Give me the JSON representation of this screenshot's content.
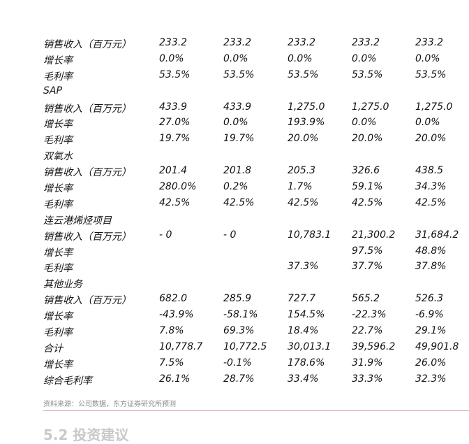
{
  "rows": [
    {
      "label": "销售收入（百万元）",
      "v": [
        "233.2",
        "233.2",
        "233.2",
        "233.2",
        "233.2"
      ]
    },
    {
      "label": "增长率",
      "v": [
        "0.0%",
        "0.0%",
        "0.0%",
        "0.0%",
        "0.0%"
      ]
    },
    {
      "label": "毛利率",
      "v": [
        "53.5%",
        "53.5%",
        "53.5%",
        "53.5%",
        "53.5%"
      ]
    },
    {
      "label": "SAP",
      "v": [
        "",
        "",
        "",
        "",
        ""
      ]
    },
    {
      "label": "销售收入（百万元）",
      "v": [
        "433.9",
        "433.9",
        "1,275.0",
        "1,275.0",
        "1,275.0"
      ]
    },
    {
      "label": "增长率",
      "v": [
        "27.0%",
        "0.0%",
        "193.9%",
        "0.0%",
        "0.0%"
      ]
    },
    {
      "label": "毛利率",
      "v": [
        "19.7%",
        "19.7%",
        "20.0%",
        "20.0%",
        "20.0%"
      ]
    },
    {
      "label": "双氧水",
      "v": [
        "",
        "",
        "",
        "",
        ""
      ]
    },
    {
      "label": "销售收入（百万元）",
      "v": [
        "201.4",
        "201.8",
        "205.3",
        "326.6",
        "438.5"
      ]
    },
    {
      "label": "增长率",
      "v": [
        "280.0%",
        "0.2%",
        "1.7%",
        "59.1%",
        "34.3%"
      ]
    },
    {
      "label": "毛利率",
      "v": [
        "42.5%",
        "42.5%",
        "42.5%",
        "42.5%",
        "42.5%"
      ]
    },
    {
      "label": "连云港烯烃项目",
      "v": [
        "",
        "",
        "",
        "",
        ""
      ]
    },
    {
      "label": "销售收入（百万元）",
      "v": [
        "- 0",
        "- 0",
        "10,783.1",
        "21,300.2",
        "31,684.2"
      ]
    },
    {
      "label": "增长率",
      "v": [
        "",
        "",
        "",
        "97.5%",
        "48.8%"
      ]
    },
    {
      "label": "毛利率",
      "v": [
        "",
        "",
        "37.3%",
        "37.7%",
        "37.8%"
      ]
    },
    {
      "label": "其他业务",
      "v": [
        "",
        "",
        "",
        "",
        ""
      ]
    },
    {
      "label": "销售收入（百万元）",
      "v": [
        "682.0",
        "285.9",
        "727.7",
        "565.2",
        "526.3"
      ]
    },
    {
      "label": "增长率",
      "v": [
        "-43.9%",
        "-58.1%",
        "154.5%",
        "-22.3%",
        "-6.9%"
      ]
    },
    {
      "label": "毛利率",
      "v": [
        "7.8%",
        "69.3%",
        "18.4%",
        "22.7%",
        "29.1%"
      ]
    },
    {
      "label": "合计",
      "v": [
        "10,778.7",
        "10,772.5",
        "30,013.1",
        "39,596.2",
        "49,901.8"
      ]
    },
    {
      "label": "增长率",
      "v": [
        "7.5%",
        "-0.1%",
        "178.6%",
        "31.9%",
        "26.0%"
      ]
    },
    {
      "label": "综合毛利率",
      "v": [
        "26.1%",
        "28.7%",
        "33.4%",
        "33.3%",
        "32.3%"
      ]
    }
  ],
  "source": "资料来源：公司数据，东方证券研究所预测",
  "next_heading": "5.2 投资建议"
}
